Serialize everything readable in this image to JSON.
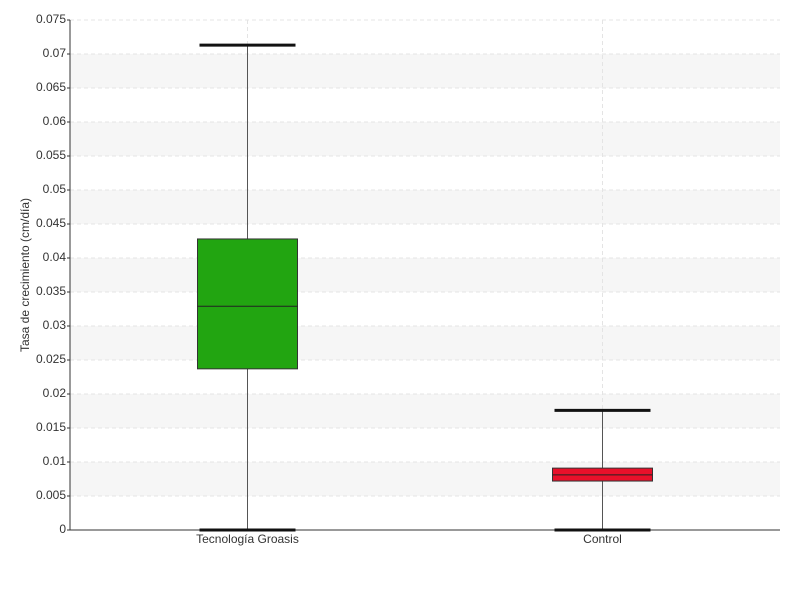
{
  "chart_data": {
    "type": "box",
    "y_label": "Tasa de crecimiento (cm/día)",
    "categories": [
      "Tecnología Groasis",
      "Control"
    ],
    "colors": [
      "#22a511",
      "#e8102a"
    ],
    "stats": [
      {
        "min": 0,
        "q1": 0.0237,
        "median": 0.0329,
        "q3": 0.0428,
        "max": 0.0713
      },
      {
        "min": 0,
        "q1": 0.0072,
        "median": 0.0081,
        "q3": 0.0091,
        "max": 0.0176
      }
    ],
    "ylim": [
      0,
      0.075
    ],
    "yticks": [
      0,
      0.005,
      0.01,
      0.015,
      0.02,
      0.025,
      0.03,
      0.035,
      0.04,
      0.045,
      0.05,
      0.055,
      0.06,
      0.065,
      0.07,
      0.075
    ],
    "grid": true
  }
}
